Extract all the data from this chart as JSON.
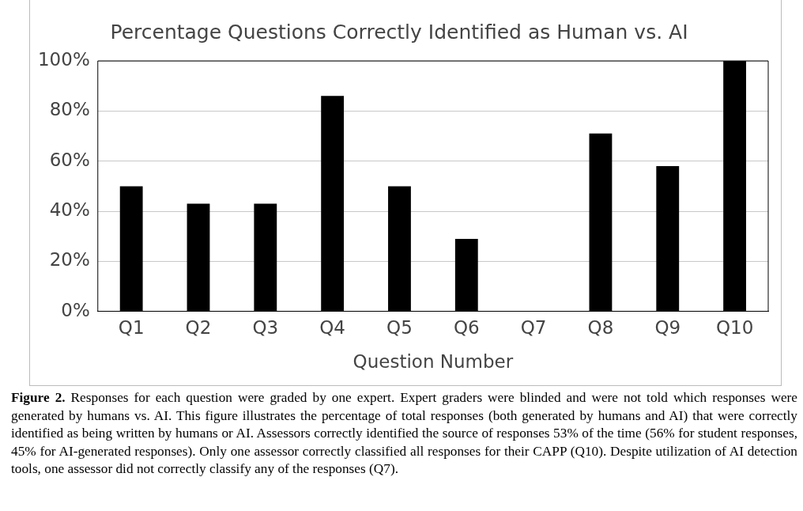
{
  "chart_data": {
    "type": "bar",
    "title": "Percentage Questions Correctly Identified as Human vs. AI",
    "xlabel": "Question Number",
    "categories": [
      "Q1",
      "Q2",
      "Q3",
      "Q4",
      "Q5",
      "Q6",
      "Q7",
      "Q8",
      "Q9",
      "Q10"
    ],
    "values": [
      50,
      43,
      43,
      86,
      50,
      29,
      0,
      71,
      58,
      100
    ],
    "color": "#000000",
    "ylim": [
      0,
      100
    ],
    "yticks": [
      {
        "value": 0,
        "label": "0%"
      },
      {
        "value": 20,
        "label": "20%"
      },
      {
        "value": 40,
        "label": "40%"
      },
      {
        "value": 60,
        "label": "60%"
      },
      {
        "value": 80,
        "label": "80%"
      },
      {
        "value": 100,
        "label": "100%"
      }
    ],
    "grid": "y",
    "legend": false,
    "annotations": [
      "Figure 2.",
      "Responses for each question were graded by one expert. Expert graders were blinded and were not told which responses were generated by humans vs. AI. This figure illustrates the percentage of total responses (both generated by humans and AI) that were correctly identified as being written by humans or AI. Assessors correctly identified the source of responses 53% of the time (56% for student responses, 45% for AI-generated responses). Only one assessor correctly classified all responses for their CAPP (Q10). Despite utilization of AI detection tools, one assessor did not correctly classify any of the responses (Q7)."
    ]
  }
}
